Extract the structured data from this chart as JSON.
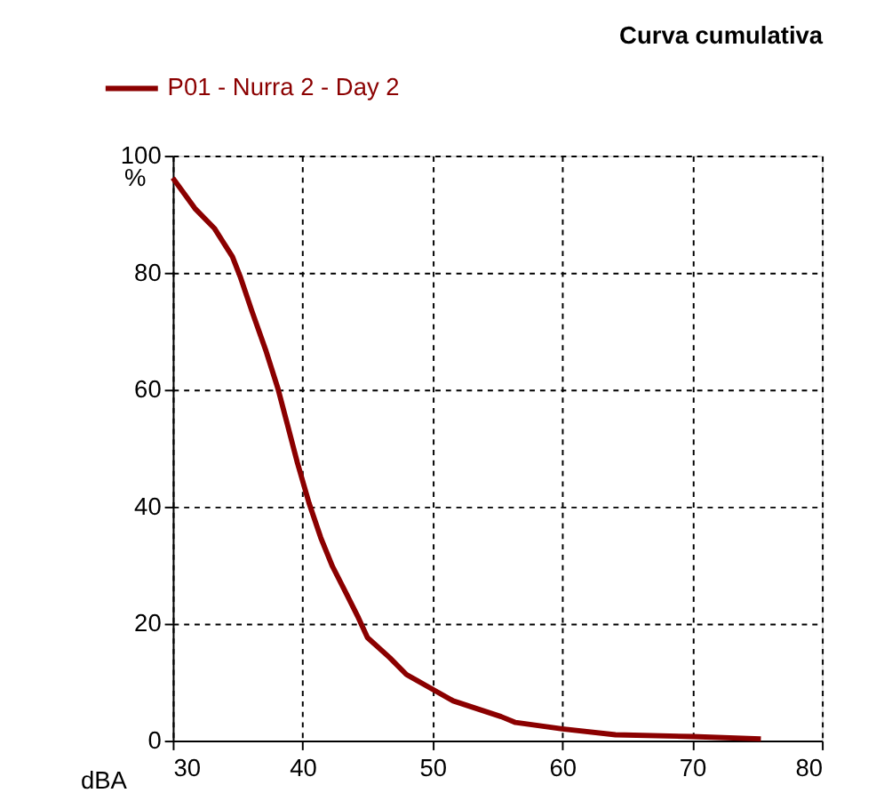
{
  "chart_data": {
    "type": "line",
    "title": "Curva cumulativa",
    "xlabel": "dBA",
    "ylabel": "%",
    "x": [
      30,
      31.7,
      33.2,
      34.6,
      35.2,
      36.1,
      37.2,
      38.1,
      38.8,
      39.6,
      40.5,
      41.4,
      42.3,
      43.4,
      44.3,
      45,
      46.7,
      48,
      50,
      51.6,
      55.3,
      56.4,
      60,
      64.1,
      70,
      75.3
    ],
    "series": [
      {
        "name": "P01 - Nurra 2 - Day 2",
        "color": "#8b0000",
        "values": [
          96.2,
          91,
          87.6,
          82.7,
          79.3,
          73.4,
          66.5,
          60.2,
          54.3,
          47.5,
          40.6,
          34.7,
          29.8,
          25,
          21,
          17.6,
          14.2,
          11.3,
          8.8,
          6.8,
          4.1,
          3.1,
          2,
          1,
          0.7,
          0.3
        ]
      }
    ],
    "xlim": [
      30,
      80
    ],
    "xticks": [
      30,
      40,
      50,
      60,
      70,
      80
    ],
    "ylim": [
      0,
      100
    ],
    "yticks": [
      0,
      20,
      40,
      60,
      80,
      100
    ],
    "grid": true,
    "legend": "top left",
    "line_style": "solid",
    "marker": "none"
  }
}
